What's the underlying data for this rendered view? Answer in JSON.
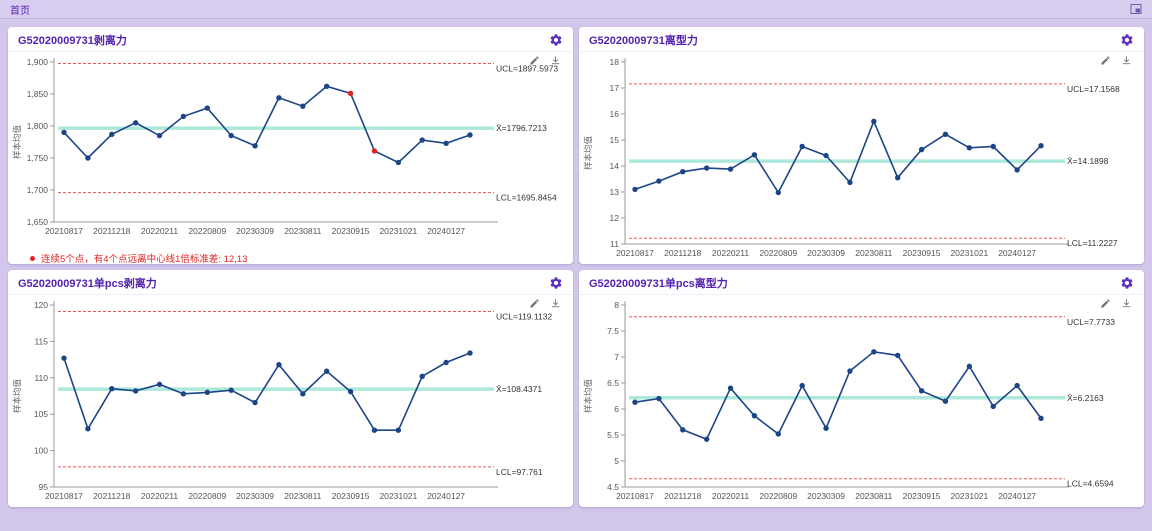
{
  "topbar": {
    "title": "首页",
    "expand_icon": "expand-icon"
  },
  "colors": {
    "line": "#1c4587",
    "out_of_control": "#e02424",
    "center_line": "#a5e6d7",
    "limit_line": "#ef5350",
    "title": "#5422b0",
    "gear": "#5d2fc0"
  },
  "panels": [
    {
      "title": "G52020009731剥离力",
      "note": {
        "text": "连续5个点，有4个点远离中心线1倍标准差: 12,13"
      }
    },
    {
      "title": "G52020009731离型力"
    },
    {
      "title": "G52020009731单pcs剥离力"
    },
    {
      "title": "G52020009731单pcs离型力"
    }
  ],
  "chart_data": [
    {
      "type": "line",
      "title": "G52020009731剥离力",
      "ylabel": "样本均值",
      "x_labels": [
        "20210817",
        "20211218",
        "20220211",
        "20220809",
        "20230309",
        "20230811",
        "20230915",
        "20231021",
        "20240127"
      ],
      "points_per_label": 2,
      "values": [
        1790,
        1750,
        1787,
        1805,
        1785,
        1815,
        1828,
        1785,
        1769,
        1844,
        1831,
        1862,
        1851,
        1761,
        1743,
        1778,
        1773,
        1786
      ],
      "red_indices": [
        12,
        13
      ],
      "ylim": [
        1650,
        1900
      ],
      "ytick_step": 50,
      "comma": true,
      "ucl": 1897.5973,
      "center": 1796.7213,
      "lcl": 1695.8454,
      "ucl_label": "UCL=1897.5973",
      "center_label": "X̄=1796.7213",
      "lcl_label": "LCL=1695.8454",
      "grid": false,
      "legend": "none"
    },
    {
      "type": "line",
      "title": "G52020009731离型力",
      "ylabel": "样本均值",
      "x_labels": [
        "20210817",
        "20211218",
        "20220211",
        "20220809",
        "20230309",
        "20230811",
        "20230915",
        "20231021",
        "20240127"
      ],
      "points_per_label": 2,
      "values": [
        13.1,
        13.42,
        13.78,
        13.92,
        13.88,
        14.43,
        12.98,
        14.75,
        14.4,
        13.37,
        15.72,
        13.55,
        14.63,
        15.22,
        14.7,
        14.75,
        13.85,
        14.78
      ],
      "red_indices": [],
      "ylim": [
        11,
        18
      ],
      "ytick_step": 1,
      "comma": false,
      "ucl": 17.1568,
      "center": 14.1898,
      "lcl": 11.2227,
      "ucl_label": "UCL=17.1568",
      "center_label": "X̄=14.1898",
      "lcl_label": "LCL=11.2227",
      "grid": false,
      "legend": "none"
    },
    {
      "type": "line",
      "title": "G52020009731单pcs剥离力",
      "ylabel": "样本均值",
      "x_labels": [
        "20210817",
        "20211218",
        "20220211",
        "20220809",
        "20230309",
        "20230811",
        "20230915",
        "20231021",
        "20240127"
      ],
      "points_per_label": 2,
      "values": [
        112.7,
        103.0,
        108.5,
        108.2,
        109.1,
        107.8,
        108.0,
        108.3,
        106.6,
        111.8,
        107.8,
        110.9,
        108.1,
        102.8,
        102.8,
        110.2,
        112.1,
        113.4
      ],
      "red_indices": [],
      "ylim": [
        95,
        120
      ],
      "ytick_step": 5,
      "comma": false,
      "ucl": 119.1132,
      "center": 108.4371,
      "lcl": 97.761,
      "ucl_label": "UCL=119.1132",
      "center_label": "X̄=108.4371",
      "lcl_label": "LCL=97.761",
      "grid": false,
      "legend": "none"
    },
    {
      "type": "line",
      "title": "G52020009731单pcs离型力",
      "ylabel": "样本均值",
      "x_labels": [
        "20210817",
        "20211218",
        "20220211",
        "20220809",
        "20230309",
        "20230811",
        "20230915",
        "20231021",
        "20240127"
      ],
      "points_per_label": 2,
      "values": [
        6.13,
        6.2,
        5.6,
        5.42,
        6.4,
        5.87,
        5.52,
        6.45,
        5.63,
        6.73,
        7.1,
        7.03,
        6.35,
        6.15,
        6.82,
        6.05,
        6.45,
        5.82
      ],
      "red_indices": [],
      "ylim": [
        4.5,
        8
      ],
      "ytick_step": 0.5,
      "comma": false,
      "ucl": 7.7733,
      "center": 6.2163,
      "lcl": 4.6594,
      "ucl_label": "UCL=7.7733",
      "center_label": "X̄=6.2163",
      "lcl_label": "LCL=4.6594",
      "grid": false,
      "legend": "none"
    }
  ]
}
